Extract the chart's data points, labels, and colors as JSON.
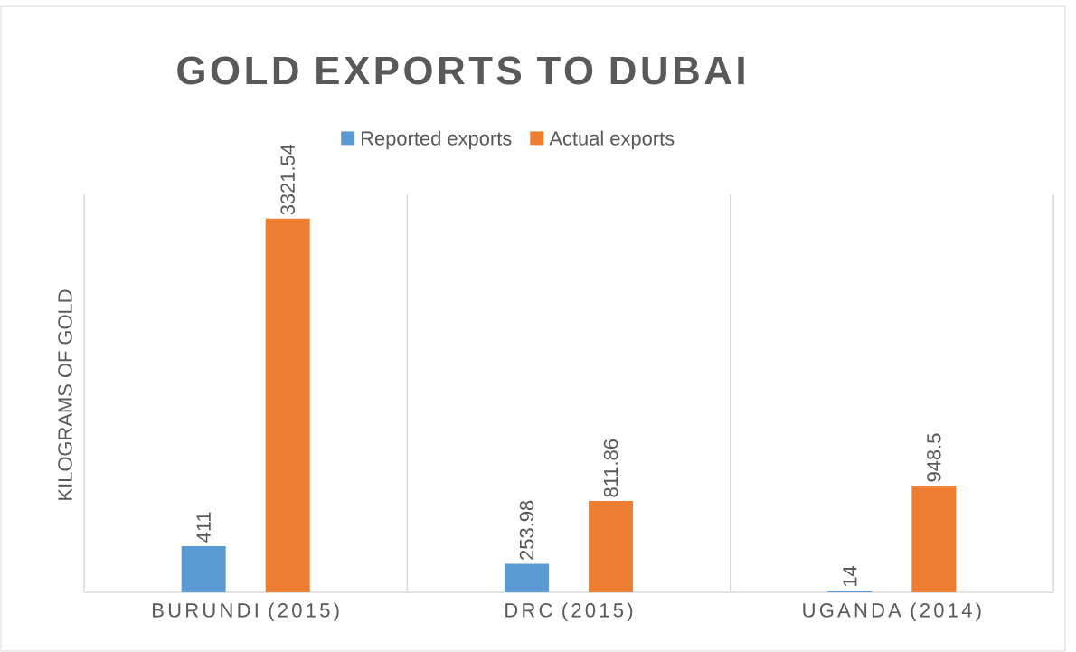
{
  "chart_data": {
    "type": "bar",
    "title": "GOLD EXPORTS TO DUBAI",
    "ylabel": "KILOGRAMS OF GOLD",
    "categories": [
      "BURUNDI (2015)",
      "DRC (2015)",
      "UGANDA (2014)"
    ],
    "series": [
      {
        "name": "Reported exports",
        "color": "#5b9bd5",
        "values": [
          411,
          253.98,
          14
        ]
      },
      {
        "name": "Actual exports",
        "color": "#ed7d31",
        "values": [
          3321.54,
          811.86,
          948.5
        ]
      }
    ],
    "data_labels": true,
    "legend": "top",
    "grid": "x",
    "tick_labels": "x"
  }
}
